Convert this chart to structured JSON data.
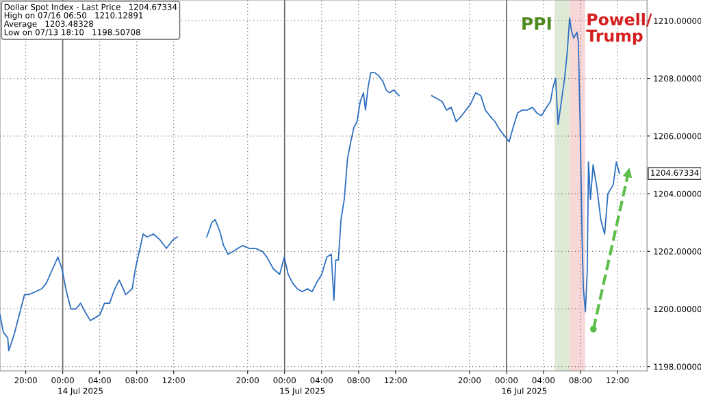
{
  "chart_data": {
    "type": "line",
    "series": [
      {
        "color": "#2e6fc0",
        "x": [
          "2025-07-13T17:13",
          "2025-07-13T17:34",
          "2025-07-13T18:03",
          "2025-07-13T18:10",
          "2025-07-13T18:44",
          "2025-07-13T19:18",
          "2025-07-13T19:52",
          "2025-07-13T20:21",
          "2025-07-13T21:03",
          "2025-07-13T21:44",
          "2025-07-13T22:14",
          "2025-07-13T22:47",
          "2025-07-13T23:29",
          "2025-07-13T23:55",
          "2025-07-14T00:20",
          "2025-07-14T00:53",
          "2025-07-14T01:26",
          "2025-07-14T01:56",
          "2025-07-14T02:25",
          "2025-07-14T02:59",
          "2025-07-14T03:32",
          "2025-07-14T04:01",
          "2025-07-14T04:31",
          "2025-07-14T05:04",
          "2025-07-14T05:38",
          "2025-07-14T06:07",
          "2025-07-14T06:49",
          "2025-07-14T07:31",
          "2025-07-14T07:52",
          "2025-07-14T08:17",
          "2025-07-14T08:42",
          "2025-07-14T09:07",
          "2025-07-14T09:49",
          "2025-07-14T10:31",
          "2025-07-14T11:13",
          "2025-07-14T11:55",
          "2025-07-14T12:24",
          "2025-07-14T14:00",
          "2025-07-14T15:35",
          "2025-07-14T16:08",
          "2025-07-14T16:29",
          "2025-07-14T16:59",
          "2025-07-14T17:24",
          "2025-07-14T17:53",
          "2025-07-14T18:27",
          "2025-07-14T18:56",
          "2025-07-14T19:29",
          "2025-07-14T20:11",
          "2025-07-14T20:53",
          "2025-07-14T21:35",
          "2025-07-14T22:05",
          "2025-07-14T22:46",
          "2025-07-14T23:28",
          "2025-07-14T23:58",
          "2025-07-15T00:23",
          "2025-07-15T00:52",
          "2025-07-15T01:22",
          "2025-07-15T01:55",
          "2025-07-15T02:28",
          "2025-07-15T02:58",
          "2025-07-15T03:27",
          "2025-07-15T04:01",
          "2025-07-15T04:34",
          "2025-07-15T05:03",
          "2025-07-15T05:20",
          "2025-07-15T05:32",
          "2025-07-15T05:49",
          "2025-07-15T06:06",
          "2025-07-15T06:27",
          "2025-07-15T06:48",
          "2025-07-15T07:09",
          "2025-07-15T07:30",
          "2025-07-15T07:50",
          "2025-07-15T08:11",
          "2025-07-15T08:32",
          "2025-07-15T08:45",
          "2025-07-15T09:02",
          "2025-07-15T09:19",
          "2025-07-15T09:44",
          "2025-07-15T10:09",
          "2025-07-15T10:38",
          "2025-07-15T10:59",
          "2025-07-15T11:20",
          "2025-07-15T11:49",
          "2025-07-15T12:23",
          "2025-07-15T14:00",
          "2025-07-15T15:55",
          "2025-07-15T16:28",
          "2025-07-15T17:02",
          "2025-07-15T17:31",
          "2025-07-15T18:01",
          "2025-07-15T18:34",
          "2025-07-15T19:08",
          "2025-07-15T19:37",
          "2025-07-15T20:06",
          "2025-07-15T20:40",
          "2025-07-15T21:13",
          "2025-07-15T21:43",
          "2025-07-15T22:12",
          "2025-07-15T22:45",
          "2025-07-15T23:19",
          "2025-07-15T23:48",
          "2025-07-16T00:17",
          "2025-07-16T00:43",
          "2025-07-16T01:12",
          "2025-07-16T01:41",
          "2025-07-16T02:14",
          "2025-07-16T02:48",
          "2025-07-16T03:17",
          "2025-07-16T03:47",
          "2025-07-16T04:20",
          "2025-07-16T04:46",
          "2025-07-16T05:02",
          "2025-07-16T05:19",
          "2025-07-16T05:35",
          "2025-07-16T05:56",
          "2025-07-16T06:17",
          "2025-07-16T06:34",
          "2025-07-16T06:50",
          "2025-07-16T07:00",
          "2025-07-16T07:16",
          "2025-07-16T07:37",
          "2025-07-16T07:46",
          "2025-07-16T07:58",
          "2025-07-16T08:11",
          "2025-07-16T08:19",
          "2025-07-16T08:32",
          "2025-07-16T08:44",
          "2025-07-16T08:52",
          "2025-07-16T09:05",
          "2025-07-16T09:22",
          "2025-07-16T09:47",
          "2025-07-16T10:12",
          "2025-07-16T10:37",
          "2025-07-16T10:58",
          "2025-07-16T11:32",
          "2025-07-16T11:53",
          "2025-07-16T12:13"
        ],
        "values": [
          1199.8,
          1199.2,
          1199.0,
          1198.55,
          1199.1,
          1199.8,
          1200.5,
          1200.5,
          1200.6,
          1200.7,
          1200.9,
          1201.3,
          1201.8,
          1201.4,
          1200.7,
          1200.0,
          1200.0,
          1200.2,
          1199.9,
          1199.6,
          1199.7,
          1199.8,
          1200.2,
          1200.2,
          1200.7,
          1201.0,
          1200.5,
          1200.7,
          1201.4,
          1202.0,
          1202.6,
          1202.5,
          1202.6,
          1202.4,
          1202.1,
          1202.4,
          1202.5,
          null,
          1202.5,
          1203.0,
          1203.1,
          1202.7,
          1202.2,
          1201.9,
          1202.0,
          1202.1,
          1202.2,
          1202.1,
          1202.1,
          1202.0,
          1201.8,
          1201.4,
          1201.2,
          1201.8,
          1201.2,
          1200.9,
          1200.7,
          1200.6,
          1200.7,
          1200.6,
          1200.9,
          1201.2,
          1201.8,
          1201.9,
          1200.3,
          1201.7,
          1201.7,
          1203.1,
          1203.8,
          1205.2,
          1205.8,
          1206.3,
          1206.5,
          1207.2,
          1207.5,
          1206.9,
          1207.7,
          1208.2,
          1208.2,
          1208.1,
          1207.9,
          1207.6,
          1207.5,
          1207.6,
          1207.4,
          null,
          1207.4,
          1207.3,
          1207.2,
          1206.9,
          1207.0,
          1206.5,
          1206.7,
          1206.9,
          1207.1,
          1207.5,
          1207.4,
          1206.9,
          1206.7,
          1206.5,
          1206.2,
          1206.0,
          1205.8,
          1206.3,
          1206.8,
          1206.9,
          1206.9,
          1207.0,
          1206.8,
          1206.7,
          1207.0,
          1207.2,
          1207.7,
          1208.0,
          1206.4,
          1207.2,
          1208.0,
          1208.9,
          1210.1,
          1209.7,
          1209.4,
          1209.6,
          1209.3,
          1206.4,
          1202.4,
          1200.7,
          1199.9,
          1201.3,
          1205.1,
          1203.8,
          1205.0,
          1204.2,
          1203.1,
          1202.6,
          1204.0,
          1204.3,
          1205.1,
          1204.7
        ]
      },
      {
        "color": "#5cbf4a",
        "line_style": "dashed",
        "marker": "circle",
        "x": [
          "2025-07-16T09:24",
          "2025-07-16T13:18"
        ],
        "values": [
          1199.3,
          1204.9
        ]
      }
    ],
    "xlim": [
      "2025-07-13T17:13",
      "2025-07-16T15:12"
    ],
    "xticks": [
      {
        "value": "2025-07-13T20:00",
        "label": "20:00"
      },
      {
        "value": "2025-07-14T00:00",
        "label": "00:00"
      },
      {
        "value": "2025-07-14T04:00",
        "label": "04:00"
      },
      {
        "value": "2025-07-14T08:00",
        "label": "08:00"
      },
      {
        "value": "2025-07-14T12:00",
        "label": "12:00"
      },
      {
        "value": "2025-07-14T20:00",
        "label": "20:00"
      },
      {
        "value": "2025-07-15T00:00",
        "label": "00:00"
      },
      {
        "value": "2025-07-15T04:00",
        "label": "04:00"
      },
      {
        "value": "2025-07-15T08:00",
        "label": "08:00"
      },
      {
        "value": "2025-07-15T12:00",
        "label": "12:00"
      },
      {
        "value": "2025-07-15T20:00",
        "label": "20:00"
      },
      {
        "value": "2025-07-16T00:00",
        "label": "00:00"
      },
      {
        "value": "2025-07-16T04:00",
        "label": "04:00"
      },
      {
        "value": "2025-07-16T08:00",
        "label": "08:00"
      },
      {
        "value": "2025-07-16T12:00",
        "label": "12:00"
      }
    ],
    "ylim": [
      1197.85,
      1210.72
    ],
    "yticks": [
      {
        "value": 1198,
        "label": "1198.00000"
      },
      {
        "value": 1200,
        "label": "1200.00000"
      },
      {
        "value": 1202,
        "label": "1202.00000"
      },
      {
        "value": 1204,
        "label": "1204.00000"
      },
      {
        "value": 1206,
        "label": "1206.00000"
      },
      {
        "value": 1208,
        "label": "1208.00000"
      },
      {
        "value": 1210,
        "label": "1210.00000"
      }
    ],
    "grid": true,
    "bands": [
      {
        "axis": "x",
        "from": "2025-07-16T05:12",
        "to": "2025-07-16T06:51",
        "label": "PPI",
        "color": "#4e8a1e"
      },
      {
        "axis": "x",
        "from": "2025-07-16T06:51",
        "to": "2025-07-16T08:30",
        "label": "Powell/\nTrump",
        "color": "#d42020"
      }
    ],
    "annotations": [
      "Dollar Spot Index - Last Price   1204.67334",
      "High on 07/16 06:50   1210.12891",
      "Average   1203.48328",
      "Low on 07/13 18:10   1198.50708",
      "14 Jul 2025",
      "15 Jul 2025",
      "16 Jul 2025",
      "1204.67334"
    ]
  }
}
